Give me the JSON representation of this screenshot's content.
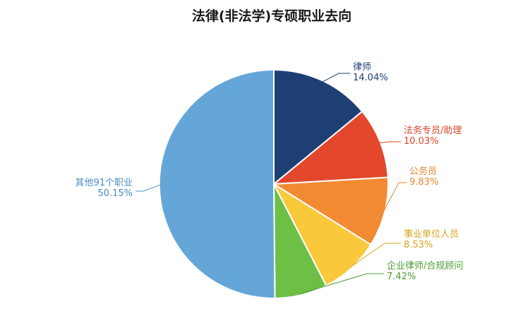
{
  "chart_data": {
    "type": "pie",
    "title": "法律(非法学)专硕职业去向",
    "slices": [
      {
        "name": "律师",
        "value": 14.04,
        "label": "14.04%",
        "color": "#1e3f73",
        "label_color": "#1e3f73"
      },
      {
        "name": "法务专员/助理",
        "value": 10.03,
        "label": "10.03%",
        "color": "#e3482c",
        "label_color": "#d9442b"
      },
      {
        "name": "公务员",
        "value": 9.83,
        "label": "9.83%",
        "color": "#f28a33",
        "label_color": "#e8862f"
      },
      {
        "name": "事业单位人员",
        "value": 8.53,
        "label": "8.53%",
        "color": "#f9c93b",
        "label_color": "#d6a51a"
      },
      {
        "name": "企业律师/合规顾问",
        "value": 7.42,
        "label": "7.42%",
        "color": "#6dbf45",
        "label_color": "#4f9b32"
      },
      {
        "name": "其他91个职业",
        "value": 50.15,
        "label": "50.15%",
        "color": "#64a6d8",
        "label_color": "#4a8cc4"
      }
    ]
  }
}
